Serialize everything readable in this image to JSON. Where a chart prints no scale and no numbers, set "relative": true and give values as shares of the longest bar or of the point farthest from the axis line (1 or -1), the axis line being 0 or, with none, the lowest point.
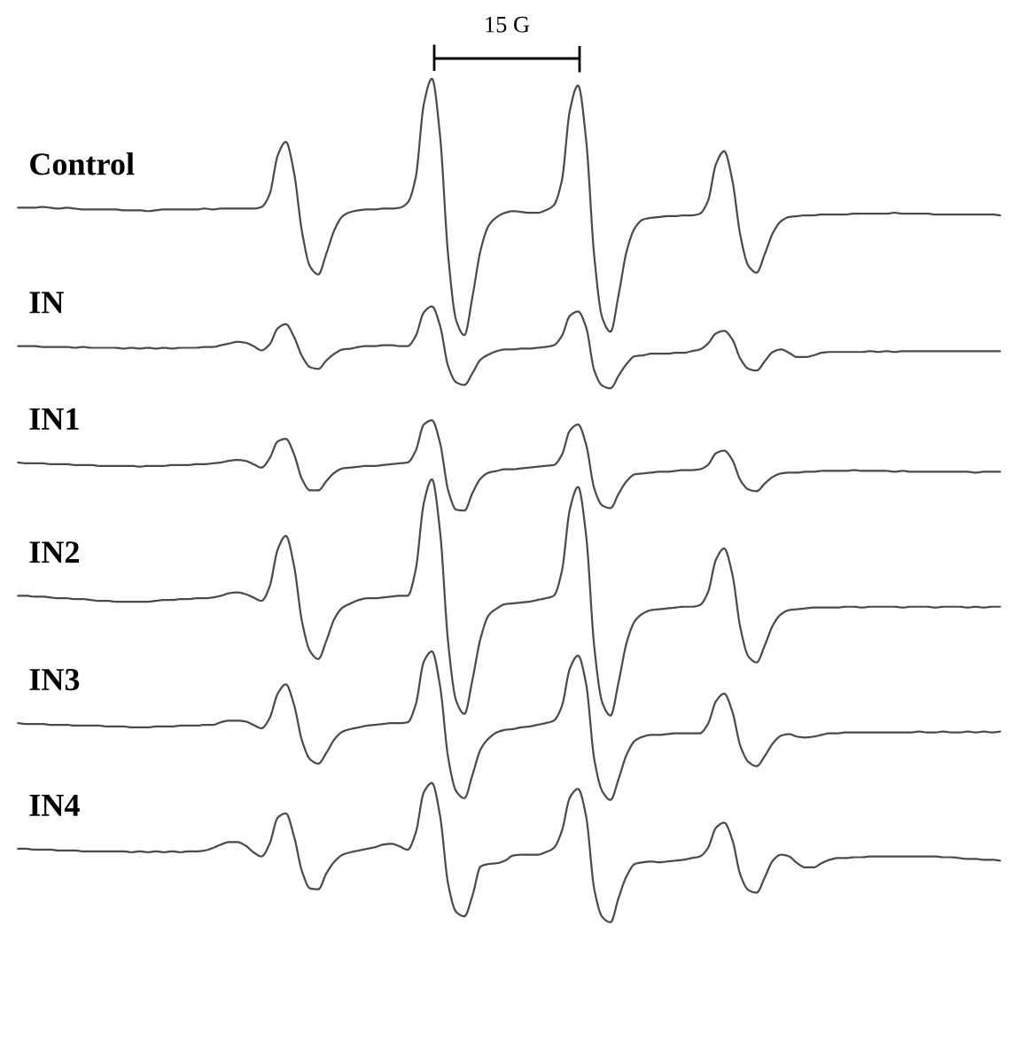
{
  "chart_data": {
    "type": "line",
    "relative": true,
    "line_style": "solid",
    "annotations": [
      "15 G"
    ],
    "categories": [
      null,
      null,
      null,
      null,
      null,
      null,
      null,
      null,
      null,
      null,
      null,
      null,
      null,
      null,
      null,
      null,
      null,
      null,
      null,
      null,
      null,
      null,
      null,
      null,
      null,
      null,
      null,
      null,
      null,
      null,
      null,
      null,
      null,
      null,
      null,
      null,
      null,
      null,
      null,
      null,
      null,
      null,
      null,
      null,
      null,
      null,
      null,
      null,
      null,
      null,
      null,
      null,
      null,
      null,
      null,
      null,
      null,
      null,
      null,
      null,
      null,
      null,
      null,
      null,
      null,
      null,
      null,
      null,
      null,
      null,
      null,
      null,
      null,
      null,
      null,
      null,
      null,
      null,
      null,
      null,
      null,
      null,
      null,
      null,
      null,
      null,
      null,
      null,
      null,
      null,
      null,
      null,
      null,
      null,
      null,
      null,
      null,
      null,
      null,
      null,
      null,
      null,
      null,
      null,
      null,
      null,
      null,
      null,
      null,
      null,
      null,
      null,
      null,
      null,
      null,
      null,
      null,
      null,
      null,
      null,
      null,
      null
    ],
    "series": [
      {
        "name": "Control",
        "color": "#4a4a4a",
        "values": [
          0.847,
          0.847,
          0.847,
          0.848,
          0.847,
          0.846,
          0.847,
          0.846,
          0.845,
          0.845,
          0.845,
          0.845,
          0.845,
          0.844,
          0.844,
          0.844,
          0.843,
          0.844,
          0.845,
          0.845,
          0.845,
          0.845,
          0.845,
          0.846,
          0.845,
          0.846,
          0.846,
          0.846,
          0.846,
          0.846,
          0.848,
          0.863,
          0.909,
          0.925,
          0.889,
          0.818,
          0.777,
          0.768,
          0.793,
          0.821,
          0.837,
          0.842,
          0.844,
          0.845,
          0.845,
          0.846,
          0.846,
          0.847,
          0.853,
          0.883,
          0.97,
          1.0,
          0.932,
          0.79,
          0.713,
          0.696,
          0.742,
          0.797,
          0.826,
          0.836,
          0.841,
          0.843,
          0.842,
          0.841,
          0.841,
          0.844,
          0.85,
          0.879,
          0.963,
          0.992,
          0.927,
          0.789,
          0.716,
          0.7,
          0.744,
          0.796,
          0.823,
          0.833,
          0.835,
          0.836,
          0.837,
          0.837,
          0.838,
          0.838,
          0.84,
          0.855,
          0.899,
          0.914,
          0.88,
          0.814,
          0.778,
          0.77,
          0.792,
          0.817,
          0.831,
          0.836,
          0.837,
          0.838,
          0.838,
          0.839,
          0.839,
          0.839,
          0.839,
          0.84,
          0.84,
          0.84,
          0.84,
          0.84,
          0.841,
          0.84,
          0.84,
          0.84,
          0.84,
          0.839,
          0.839,
          0.839,
          0.839,
          0.839,
          0.839,
          0.839,
          0.839,
          0.838
        ]
      },
      {
        "name": "IN",
        "color": "#4a4a4a",
        "values": [
          0.683,
          0.683,
          0.683,
          0.682,
          0.682,
          0.682,
          0.682,
          0.681,
          0.682,
          0.681,
          0.681,
          0.681,
          0.681,
          0.68,
          0.681,
          0.68,
          0.681,
          0.68,
          0.681,
          0.68,
          0.681,
          0.681,
          0.681,
          0.682,
          0.682,
          0.684,
          0.686,
          0.688,
          0.687,
          0.683,
          0.678,
          0.685,
          0.704,
          0.709,
          0.694,
          0.671,
          0.658,
          0.656,
          0.666,
          0.674,
          0.679,
          0.68,
          0.682,
          0.683,
          0.683,
          0.684,
          0.684,
          0.683,
          0.683,
          0.695,
          0.723,
          0.73,
          0.707,
          0.659,
          0.64,
          0.637,
          0.651,
          0.667,
          0.673,
          0.677,
          0.679,
          0.679,
          0.68,
          0.68,
          0.681,
          0.682,
          0.684,
          0.695,
          0.719,
          0.724,
          0.705,
          0.654,
          0.636,
          0.633,
          0.648,
          0.662,
          0.671,
          0.672,
          0.674,
          0.674,
          0.674,
          0.675,
          0.675,
          0.677,
          0.679,
          0.686,
          0.698,
          0.701,
          0.691,
          0.668,
          0.656,
          0.654,
          0.665,
          0.676,
          0.679,
          0.675,
          0.67,
          0.67,
          0.672,
          0.675,
          0.676,
          0.676,
          0.676,
          0.676,
          0.676,
          0.677,
          0.676,
          0.677,
          0.676,
          0.677,
          0.677,
          0.677,
          0.677,
          0.677,
          0.677,
          0.677,
          0.677,
          0.677,
          0.677,
          0.677,
          0.677,
          0.677
        ]
      },
      {
        "name": "IN1",
        "color": "#4a4a4a",
        "values": [
          0.545,
          0.544,
          0.544,
          0.544,
          0.543,
          0.543,
          0.543,
          0.542,
          0.542,
          0.542,
          0.541,
          0.541,
          0.541,
          0.541,
          0.541,
          0.54,
          0.541,
          0.541,
          0.541,
          0.542,
          0.542,
          0.542,
          0.543,
          0.543,
          0.544,
          0.545,
          0.547,
          0.548,
          0.547,
          0.543,
          0.539,
          0.55,
          0.57,
          0.573,
          0.555,
          0.525,
          0.512,
          0.512,
          0.523,
          0.533,
          0.538,
          0.539,
          0.54,
          0.541,
          0.541,
          0.542,
          0.543,
          0.544,
          0.545,
          0.559,
          0.59,
          0.595,
          0.568,
          0.512,
          0.489,
          0.488,
          0.509,
          0.526,
          0.533,
          0.535,
          0.537,
          0.537,
          0.538,
          0.539,
          0.54,
          0.541,
          0.542,
          0.554,
          0.583,
          0.59,
          0.566,
          0.514,
          0.494,
          0.491,
          0.508,
          0.523,
          0.531,
          0.532,
          0.533,
          0.534,
          0.534,
          0.535,
          0.536,
          0.536,
          0.537,
          0.542,
          0.556,
          0.559,
          0.548,
          0.524,
          0.513,
          0.511,
          0.52,
          0.528,
          0.532,
          0.533,
          0.533,
          0.534,
          0.534,
          0.535,
          0.535,
          0.535,
          0.535,
          0.536,
          0.535,
          0.535,
          0.535,
          0.535,
          0.534,
          0.535,
          0.534,
          0.534,
          0.534,
          0.534,
          0.534,
          0.534,
          0.534,
          0.534,
          0.533,
          0.534,
          0.534,
          0.534
        ]
      },
      {
        "name": "IN2",
        "color": "#4a4a4a",
        "values": [
          0.387,
          0.387,
          0.386,
          0.386,
          0.385,
          0.384,
          0.384,
          0.383,
          0.383,
          0.382,
          0.381,
          0.381,
          0.38,
          0.38,
          0.38,
          0.38,
          0.38,
          0.381,
          0.382,
          0.382,
          0.383,
          0.383,
          0.384,
          0.384,
          0.385,
          0.387,
          0.39,
          0.391,
          0.389,
          0.385,
          0.381,
          0.398,
          0.442,
          0.458,
          0.423,
          0.356,
          0.321,
          0.312,
          0.334,
          0.36,
          0.373,
          0.378,
          0.382,
          0.384,
          0.384,
          0.385,
          0.386,
          0.387,
          0.387,
          0.418,
          0.497,
          0.525,
          0.463,
          0.331,
          0.262,
          0.247,
          0.288,
          0.337,
          0.364,
          0.372,
          0.377,
          0.378,
          0.379,
          0.38,
          0.382,
          0.384,
          0.387,
          0.416,
          0.49,
          0.516,
          0.458,
          0.326,
          0.26,
          0.245,
          0.285,
          0.332,
          0.357,
          0.366,
          0.37,
          0.371,
          0.372,
          0.373,
          0.374,
          0.374,
          0.376,
          0.391,
          0.43,
          0.443,
          0.413,
          0.349,
          0.315,
          0.308,
          0.328,
          0.352,
          0.365,
          0.37,
          0.371,
          0.372,
          0.373,
          0.373,
          0.373,
          0.373,
          0.374,
          0.374,
          0.373,
          0.374,
          0.374,
          0.374,
          0.374,
          0.373,
          0.374,
          0.374,
          0.374,
          0.373,
          0.374,
          0.374,
          0.374,
          0.373,
          0.374,
          0.373,
          0.374,
          0.374
        ]
      },
      {
        "name": "IN3",
        "color": "#4a4a4a",
        "values": [
          0.236,
          0.235,
          0.235,
          0.235,
          0.234,
          0.234,
          0.234,
          0.233,
          0.233,
          0.233,
          0.233,
          0.232,
          0.232,
          0.232,
          0.231,
          0.231,
          0.231,
          0.232,
          0.232,
          0.232,
          0.233,
          0.233,
          0.233,
          0.234,
          0.234,
          0.237,
          0.239,
          0.239,
          0.238,
          0.234,
          0.23,
          0.242,
          0.271,
          0.282,
          0.258,
          0.215,
          0.193,
          0.188,
          0.201,
          0.217,
          0.226,
          0.229,
          0.231,
          0.233,
          0.234,
          0.235,
          0.236,
          0.236,
          0.237,
          0.258,
          0.309,
          0.321,
          0.28,
          0.195,
          0.155,
          0.147,
          0.175,
          0.205,
          0.218,
          0.225,
          0.228,
          0.229,
          0.231,
          0.232,
          0.234,
          0.236,
          0.239,
          0.256,
          0.301,
          0.316,
          0.282,
          0.193,
          0.155,
          0.145,
          0.17,
          0.199,
          0.215,
          0.22,
          0.222,
          0.222,
          0.223,
          0.224,
          0.224,
          0.224,
          0.224,
          0.235,
          0.262,
          0.271,
          0.25,
          0.209,
          0.19,
          0.185,
          0.197,
          0.212,
          0.221,
          0.223,
          0.22,
          0.219,
          0.22,
          0.222,
          0.224,
          0.224,
          0.225,
          0.225,
          0.225,
          0.225,
          0.225,
          0.225,
          0.225,
          0.225,
          0.225,
          0.226,
          0.225,
          0.225,
          0.226,
          0.225,
          0.225,
          0.226,
          0.225,
          0.226,
          0.225,
          0.226
        ]
      },
      {
        "name": "IN4",
        "color": "#4a4a4a",
        "values": [
          0.087,
          0.087,
          0.086,
          0.086,
          0.086,
          0.085,
          0.085,
          0.085,
          0.084,
          0.084,
          0.084,
          0.084,
          0.084,
          0.084,
          0.083,
          0.084,
          0.083,
          0.084,
          0.083,
          0.084,
          0.083,
          0.084,
          0.084,
          0.085,
          0.088,
          0.092,
          0.095,
          0.095,
          0.091,
          0.083,
          0.078,
          0.093,
          0.124,
          0.129,
          0.102,
          0.06,
          0.04,
          0.039,
          0.058,
          0.072,
          0.08,
          0.083,
          0.085,
          0.087,
          0.089,
          0.092,
          0.093,
          0.09,
          0.086,
          0.106,
          0.154,
          0.165,
          0.126,
          0.045,
          0.012,
          0.007,
          0.032,
          0.066,
          0.069,
          0.07,
          0.073,
          0.079,
          0.08,
          0.08,
          0.08,
          0.083,
          0.088,
          0.108,
          0.148,
          0.158,
          0.125,
          0.039,
          0.006,
          0.0,
          0.029,
          0.055,
          0.069,
          0.071,
          0.072,
          0.071,
          0.072,
          0.073,
          0.074,
          0.076,
          0.078,
          0.088,
          0.112,
          0.118,
          0.098,
          0.056,
          0.038,
          0.035,
          0.053,
          0.073,
          0.08,
          0.078,
          0.07,
          0.065,
          0.065,
          0.07,
          0.074,
          0.076,
          0.076,
          0.077,
          0.077,
          0.078,
          0.078,
          0.078,
          0.078,
          0.078,
          0.078,
          0.078,
          0.078,
          0.078,
          0.077,
          0.077,
          0.076,
          0.075,
          0.075,
          0.074,
          0.074,
          0.073
        ]
      }
    ]
  }
}
